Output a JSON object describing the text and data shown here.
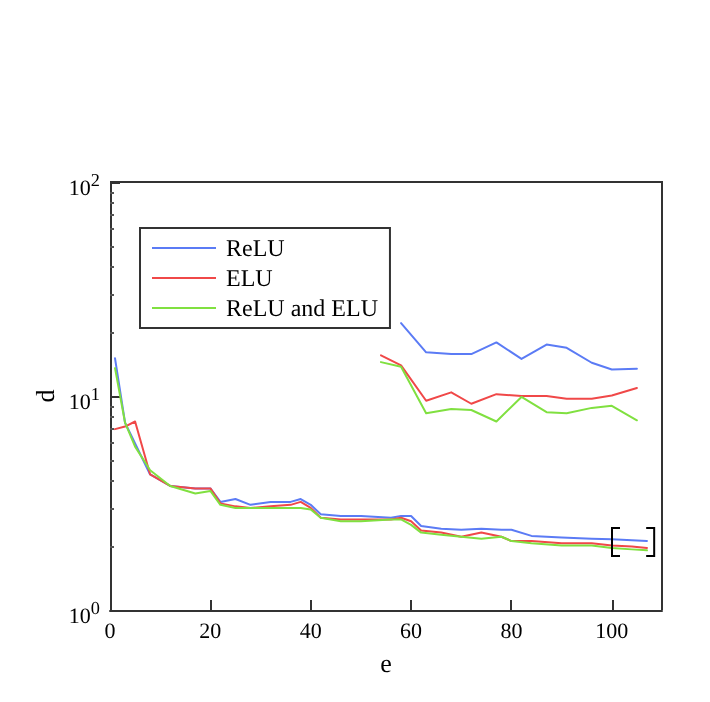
{
  "chart_data": {
    "type": "line",
    "xlabel": "e",
    "ylabel": "d",
    "log": "y",
    "grid": false,
    "legend": "top left",
    "xlim": [
      0,
      110
    ],
    "xticks": [
      0,
      20,
      40,
      60,
      80,
      100
    ],
    "ylim": [
      1,
      100
    ],
    "yticks": [
      {
        "value": 1,
        "label": "10$^{0}$"
      },
      {
        "value": 10,
        "label": "10$^{1}$"
      },
      {
        "value": 100,
        "label": "10$^{2}$"
      }
    ],
    "x": [
      1,
      3,
      5,
      8,
      12,
      17,
      20,
      22,
      25,
      28,
      32,
      36,
      38,
      40,
      42,
      46,
      50,
      56,
      58,
      60,
      62,
      66,
      70,
      74,
      78,
      80,
      84,
      90,
      96,
      100,
      104,
      107
    ],
    "series": [
      {
        "name": "ReLU",
        "color": "#5b7bf5",
        "values": [
          15,
          7.5,
          6.0,
          4.3,
          3.8,
          3.7,
          3.7,
          3.2,
          3.3,
          3.1,
          3.2,
          3.2,
          3.3,
          3.1,
          2.8,
          2.75,
          2.75,
          2.7,
          2.75,
          2.75,
          2.47,
          2.4,
          2.37,
          2.4,
          2.37,
          2.37,
          2.22,
          2.18,
          2.15,
          2.14,
          2.12,
          2.1
        ]
      },
      {
        "name": "ELU",
        "color": "#f04848",
        "values": [
          7,
          7.2,
          7.6,
          4.3,
          3.8,
          3.7,
          3.7,
          3.15,
          3.05,
          3.0,
          3.05,
          3.1,
          3.2,
          3.0,
          2.7,
          2.65,
          2.65,
          2.65,
          2.7,
          2.6,
          2.35,
          2.3,
          2.2,
          2.3,
          2.2,
          2.1,
          2.1,
          2.05,
          2.05,
          2.0,
          1.98,
          1.95
        ]
      },
      {
        "name": "ReLU and ELU",
        "color": "#80e040",
        "values": [
          13.5,
          7.5,
          5.8,
          4.5,
          3.8,
          3.5,
          3.6,
          3.1,
          3.0,
          3.0,
          3.0,
          3.0,
          3.0,
          2.95,
          2.7,
          2.6,
          2.6,
          2.65,
          2.65,
          2.5,
          2.3,
          2.25,
          2.2,
          2.15,
          2.2,
          2.1,
          2.05,
          2.0,
          2.0,
          1.95,
          1.92,
          1.9
        ]
      },
      {
        "color": "#5b7bf5",
        "x": [
          58,
          63,
          68,
          72,
          77,
          82,
          87,
          91,
          96,
          100,
          105
        ],
        "values": [
          21.9,
          16.0,
          15.7,
          15.7,
          17.8,
          14.9,
          17.4,
          16.8,
          14.3,
          13.3,
          13.4
        ]
      },
      {
        "color": "#f04848",
        "x": [
          54,
          58,
          63,
          68,
          72,
          77,
          82,
          87,
          91,
          96,
          100,
          105
        ],
        "values": [
          15.5,
          13.9,
          9.5,
          10.4,
          9.2,
          10.2,
          10.0,
          10.0,
          9.7,
          9.7,
          10.05,
          10.9
        ]
      },
      {
        "color": "#80e040",
        "x": [
          54,
          58,
          63,
          68,
          72,
          77,
          82,
          87,
          91,
          96,
          100,
          105
        ],
        "values": [
          14.4,
          13.7,
          8.3,
          8.7,
          8.6,
          7.6,
          9.9,
          8.4,
          8.3,
          8.8,
          9.0,
          7.7
        ]
      }
    ]
  }
}
